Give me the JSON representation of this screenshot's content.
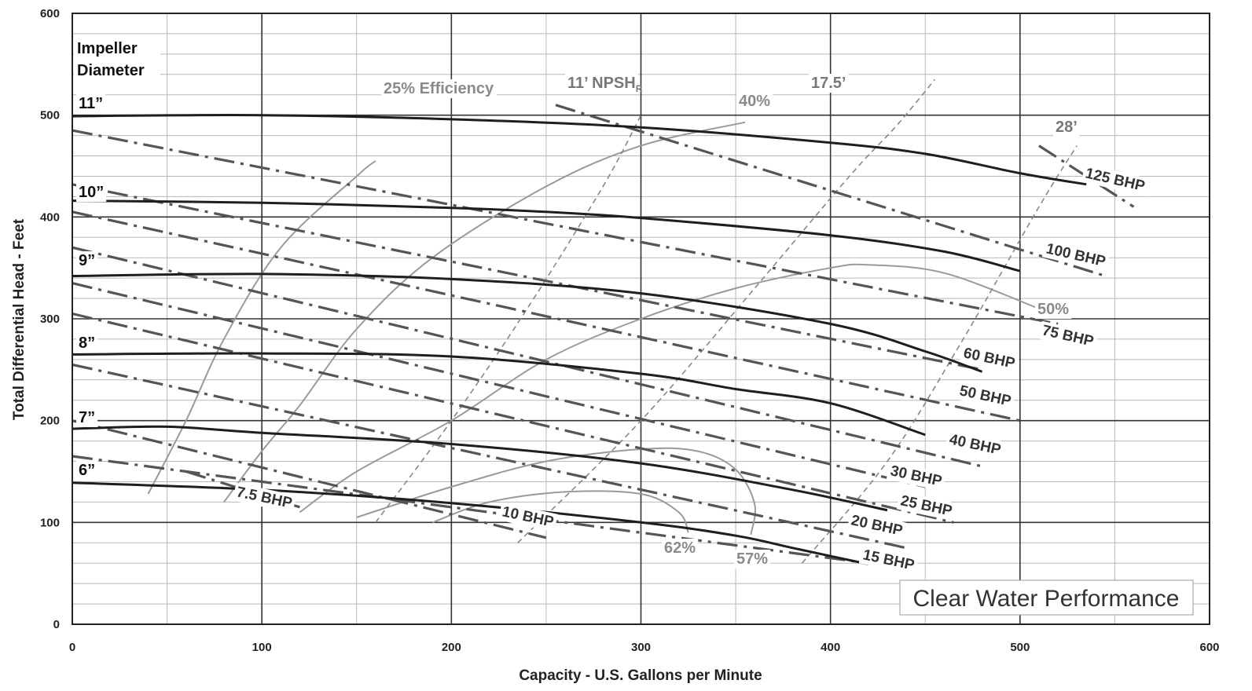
{
  "chart_data": {
    "type": "line",
    "title": "",
    "xlabel": "Capacity - U.S. Gallons per Minute",
    "ylabel": "Total Differential Head - Feet",
    "xlim": [
      0,
      600
    ],
    "ylim": [
      0,
      600
    ],
    "x_major_ticks": [
      0,
      100,
      200,
      300,
      400,
      500,
      600
    ],
    "x_minor_ticks": [
      50,
      150,
      250,
      350,
      450,
      550
    ],
    "y_major_ticks": [
      0,
      100,
      200,
      300,
      400,
      500,
      600
    ],
    "y_minor_step": 20,
    "grid": true,
    "legend_title": "Impeller\nDiameter",
    "annotation": "Clear Water Performance",
    "diameter_curves": [
      {
        "label": "11”",
        "points": [
          [
            0,
            499
          ],
          [
            100,
            500
          ],
          [
            200,
            496
          ],
          [
            300,
            488
          ],
          [
            400,
            473
          ],
          [
            450,
            462
          ],
          [
            500,
            443
          ],
          [
            535,
            432
          ]
        ]
      },
      {
        "label": "10”",
        "points": [
          [
            0,
            416
          ],
          [
            100,
            414
          ],
          [
            200,
            409
          ],
          [
            250,
            405
          ],
          [
            300,
            399
          ],
          [
            400,
            382
          ],
          [
            460,
            366
          ],
          [
            500,
            347
          ]
        ]
      },
      {
        "label": "9”",
        "points": [
          [
            0,
            342
          ],
          [
            100,
            344
          ],
          [
            200,
            339
          ],
          [
            300,
            325
          ],
          [
            400,
            295
          ],
          [
            450,
            268
          ],
          [
            480,
            248
          ]
        ]
      },
      {
        "label": "8”",
        "points": [
          [
            0,
            265
          ],
          [
            100,
            266
          ],
          [
            200,
            263
          ],
          [
            300,
            246
          ],
          [
            350,
            231
          ],
          [
            400,
            217
          ],
          [
            450,
            186
          ]
        ]
      },
      {
        "label": "7”",
        "points": [
          [
            0,
            192
          ],
          [
            50,
            194
          ],
          [
            100,
            188
          ],
          [
            200,
            177
          ],
          [
            300,
            158
          ],
          [
            380,
            132
          ],
          [
            430,
            112
          ]
        ]
      },
      {
        "label": "6”",
        "points": [
          [
            0,
            139
          ],
          [
            100,
            132
          ],
          [
            200,
            119
          ],
          [
            300,
            100
          ],
          [
            350,
            87
          ],
          [
            380,
            75
          ],
          [
            420,
            59
          ]
        ]
      }
    ],
    "bhp_lines": [
      {
        "label": "125 BHP",
        "points": [
          [
            510,
            470
          ],
          [
            560,
            410
          ]
        ]
      },
      {
        "label": "100 BHP",
        "points": [
          [
            255,
            510
          ],
          [
            545,
            342
          ]
        ]
      },
      {
        "label": "75 BHP",
        "points": [
          [
            0,
            485
          ],
          [
            520,
            295
          ]
        ]
      },
      {
        "label": "60 BHP",
        "points": [
          [
            0,
            432
          ],
          [
            480,
            250
          ]
        ]
      },
      {
        "label": "50 BHP",
        "points": [
          [
            0,
            405
          ],
          [
            500,
            200
          ]
        ]
      },
      {
        "label": "40 BHP",
        "points": [
          [
            0,
            370
          ],
          [
            480,
            155
          ]
        ]
      },
      {
        "label": "30 BHP",
        "points": [
          [
            0,
            335
          ],
          [
            450,
            135
          ]
        ]
      },
      {
        "label": "25 BHP",
        "points": [
          [
            0,
            305
          ],
          [
            465,
            100
          ]
        ]
      },
      {
        "label": "20 BHP",
        "points": [
          [
            0,
            255
          ],
          [
            440,
            75
          ]
        ]
      },
      {
        "label": "15 BHP",
        "points": [
          [
            0,
            165
          ],
          [
            440,
            55
          ]
        ]
      },
      {
        "label": "10 BHP",
        "points": [
          [
            0,
            200
          ],
          [
            250,
            85
          ]
        ]
      },
      {
        "label": "7.5 BHP",
        "points": [
          [
            60,
            150
          ],
          [
            120,
            115
          ]
        ]
      }
    ],
    "efficiency_curves": [
      {
        "label": "25% Efficiency",
        "points": [
          [
            40,
            128
          ],
          [
            60,
            200
          ],
          [
            80,
            280
          ],
          [
            110,
            370
          ],
          [
            150,
            440
          ],
          [
            160,
            455
          ]
        ]
      },
      {
        "label": "40%",
        "points": [
          [
            80,
            120
          ],
          [
            100,
            170
          ],
          [
            120,
            215
          ],
          [
            150,
            290
          ],
          [
            190,
            360
          ],
          [
            250,
            430
          ],
          [
            300,
            470
          ],
          [
            355,
            493
          ]
        ]
      },
      {
        "label": "50%",
        "points": [
          [
            120,
            110
          ],
          [
            150,
            150
          ],
          [
            200,
            200
          ],
          [
            250,
            260
          ],
          [
            300,
            300
          ],
          [
            350,
            330
          ],
          [
            400,
            350
          ],
          [
            420,
            353
          ],
          [
            460,
            345
          ],
          [
            510,
            310
          ]
        ]
      },
      {
        "label": "57%",
        "points": [
          [
            150,
            105
          ],
          [
            200,
            135
          ],
          [
            250,
            160
          ],
          [
            300,
            172
          ],
          [
            330,
            170
          ],
          [
            350,
            152
          ],
          [
            360,
            118
          ],
          [
            358,
            88
          ]
        ]
      },
      {
        "label": "62%",
        "points": [
          [
            190,
            100
          ],
          [
            220,
            120
          ],
          [
            260,
            130
          ],
          [
            300,
            128
          ],
          [
            320,
            110
          ],
          [
            325,
            90
          ]
        ]
      }
    ],
    "npsh_curves": [
      {
        "label": "11’ NPSH",
        "subscript": "R",
        "points": [
          [
            160,
            100
          ],
          [
            200,
            200
          ],
          [
            240,
            310
          ],
          [
            280,
            430
          ],
          [
            300,
            500
          ]
        ]
      },
      {
        "label": "17.5’",
        "points": [
          [
            235,
            80
          ],
          [
            300,
            200
          ],
          [
            360,
            330
          ],
          [
            410,
            440
          ],
          [
            435,
            490
          ],
          [
            455,
            535
          ]
        ]
      },
      {
        "label": "28’",
        "points": [
          [
            385,
            60
          ],
          [
            430,
            160
          ],
          [
            470,
            280
          ],
          [
            510,
            410
          ],
          [
            530,
            470
          ]
        ]
      }
    ]
  },
  "icons": {
    "none": ""
  }
}
